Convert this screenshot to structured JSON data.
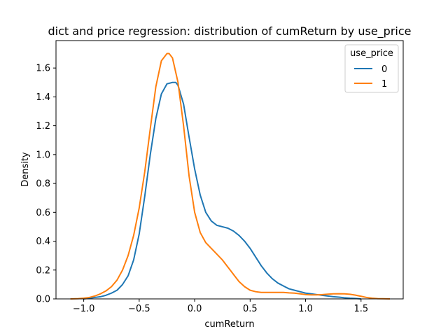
{
  "chart_data": {
    "type": "line",
    "title": "dict and price regression: distribution of cumReturn by use_price",
    "xlabel": "cumReturn",
    "ylabel": "Density",
    "xlim": [
      -1.25,
      1.88
    ],
    "ylim": [
      0,
      1.79
    ],
    "xticks": [
      -1.0,
      -0.5,
      0.0,
      0.5,
      1.0,
      1.5
    ],
    "xtick_labels": [
      "−1.0",
      "−0.5",
      "0.0",
      "0.5",
      "1.0",
      "1.5"
    ],
    "yticks": [
      0,
      0.2,
      0.4,
      0.6,
      0.8,
      1.0,
      1.2,
      1.4,
      1.6
    ],
    "ytick_labels": [
      "0.0",
      "0.2",
      "0.4",
      "0.6",
      "0.8",
      "1.0",
      "1.2",
      "1.4",
      "1.6"
    ],
    "grid": false,
    "legend": {
      "title": "use_price",
      "placement": "top-right"
    },
    "series": [
      {
        "name": "0",
        "color": "#1f77b4",
        "x": [
          -1.0,
          -0.95,
          -0.9,
          -0.85,
          -0.8,
          -0.75,
          -0.7,
          -0.65,
          -0.6,
          -0.55,
          -0.5,
          -0.45,
          -0.4,
          -0.35,
          -0.3,
          -0.25,
          -0.2,
          -0.17,
          -0.15,
          -0.1,
          -0.05,
          0.0,
          0.05,
          0.1,
          0.15,
          0.2,
          0.25,
          0.3,
          0.35,
          0.4,
          0.45,
          0.5,
          0.55,
          0.6,
          0.65,
          0.7,
          0.75,
          0.8,
          0.85,
          0.9,
          0.95,
          1.0,
          1.05,
          1.1,
          1.15,
          1.2,
          1.25,
          1.3,
          1.35,
          1.4,
          1.45,
          1.5
        ],
        "y": [
          0.0,
          0.005,
          0.01,
          0.015,
          0.025,
          0.04,
          0.06,
          0.1,
          0.16,
          0.27,
          0.45,
          0.71,
          1.0,
          1.25,
          1.42,
          1.49,
          1.5,
          1.5,
          1.48,
          1.35,
          1.12,
          0.9,
          0.72,
          0.6,
          0.54,
          0.51,
          0.5,
          0.49,
          0.47,
          0.44,
          0.4,
          0.35,
          0.29,
          0.23,
          0.18,
          0.14,
          0.11,
          0.09,
          0.07,
          0.06,
          0.05,
          0.04,
          0.035,
          0.03,
          0.025,
          0.02,
          0.015,
          0.012,
          0.008,
          0.005,
          0.003,
          0.0
        ]
      },
      {
        "name": "1",
        "color": "#ff7f0e",
        "x": [
          -1.12,
          -1.05,
          -1.0,
          -0.95,
          -0.9,
          -0.85,
          -0.8,
          -0.75,
          -0.7,
          -0.65,
          -0.6,
          -0.55,
          -0.5,
          -0.45,
          -0.4,
          -0.35,
          -0.3,
          -0.25,
          -0.23,
          -0.2,
          -0.15,
          -0.1,
          -0.05,
          0.0,
          0.05,
          0.1,
          0.15,
          0.2,
          0.25,
          0.3,
          0.35,
          0.4,
          0.45,
          0.5,
          0.55,
          0.6,
          0.65,
          0.7,
          0.75,
          0.8,
          0.85,
          0.9,
          0.95,
          1.0,
          1.05,
          1.1,
          1.15,
          1.2,
          1.25,
          1.3,
          1.35,
          1.4,
          1.45,
          1.5,
          1.55,
          1.6,
          1.65,
          1.7,
          1.76
        ],
        "y": [
          0.0,
          0.002,
          0.005,
          0.01,
          0.02,
          0.035,
          0.055,
          0.085,
          0.13,
          0.2,
          0.3,
          0.44,
          0.63,
          0.88,
          1.18,
          1.47,
          1.65,
          1.7,
          1.7,
          1.67,
          1.5,
          1.2,
          0.85,
          0.6,
          0.46,
          0.39,
          0.35,
          0.31,
          0.27,
          0.22,
          0.17,
          0.12,
          0.085,
          0.06,
          0.05,
          0.045,
          0.045,
          0.045,
          0.045,
          0.045,
          0.042,
          0.04,
          0.035,
          0.03,
          0.028,
          0.028,
          0.03,
          0.033,
          0.035,
          0.036,
          0.035,
          0.032,
          0.026,
          0.018,
          0.01,
          0.005,
          0.002,
          0.001,
          0.0
        ]
      }
    ]
  }
}
